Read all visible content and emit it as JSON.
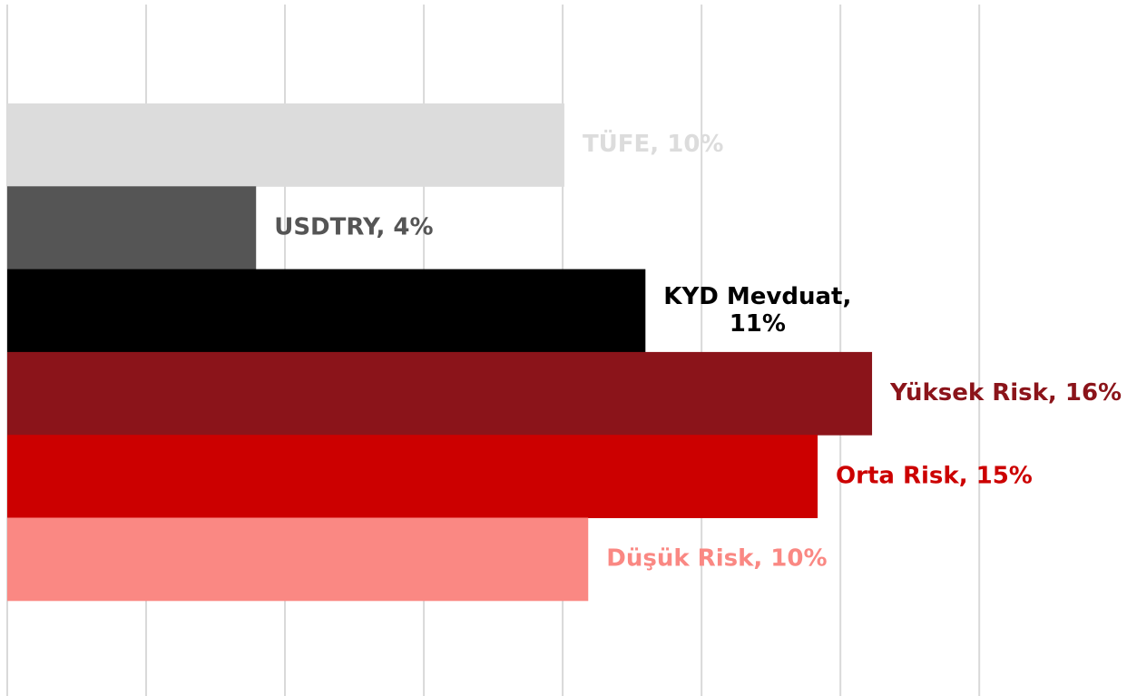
{
  "chart_data": {
    "type": "barh",
    "values": [
      10.03,
      4.48,
      11.49,
      15.57,
      14.59,
      10.46
    ],
    "value_labels": [
      [
        "TÜFE, 10%"
      ],
      [
        "USDTRY, 4%"
      ],
      [
        "KYD Mevduat,",
        "11%"
      ],
      [
        "Yüksek Risk, 16%"
      ],
      [
        "Orta Risk, 15%"
      ],
      [
        "Düşük Risk, 10%"
      ]
    ],
    "colors": [
      "#dcdcdc",
      "#555555",
      "#000000",
      "#8b141a",
      "#cc0000",
      "#fa8883"
    ],
    "xlim": [
      0,
      20.16
    ],
    "xticks": [
      0,
      2.5,
      5,
      7.5,
      10,
      12.5,
      15,
      17.5
    ],
    "grid": true
  }
}
